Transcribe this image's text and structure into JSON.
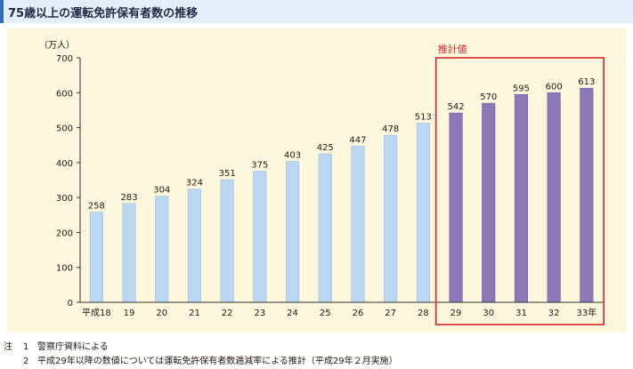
{
  "page": {
    "title": "75歳以上の運転免許保有者数の推移"
  },
  "notes": {
    "mark": "注",
    "items": [
      {
        "num": "1",
        "text": "警察庁資料による"
      },
      {
        "num": "2",
        "text": "平成29年以降の数値については運転免許保有者数逓減率による推計（平成29年２月実施）"
      }
    ]
  },
  "chart_data": {
    "type": "bar",
    "unit_label": "（万人）",
    "ylim": [
      0,
      700
    ],
    "yticks": [
      0,
      100,
      200,
      300,
      400,
      500,
      600,
      700
    ],
    "categories": [
      "平成18",
      "19",
      "20",
      "21",
      "22",
      "23",
      "24",
      "25",
      "26",
      "27",
      "28",
      "29",
      "30",
      "31",
      "32",
      "33年"
    ],
    "values": [
      258,
      283,
      304,
      324,
      351,
      375,
      403,
      425,
      447,
      478,
      513,
      542,
      570,
      595,
      600,
      613
    ],
    "estimate_start_index": 11,
    "estimate_label": "推計値",
    "colors": {
      "actual": "#bcd7f2",
      "estimated": "#8e79b8",
      "estimate_box": "#d7262d",
      "axis": "#333333"
    },
    "grid": false
  }
}
